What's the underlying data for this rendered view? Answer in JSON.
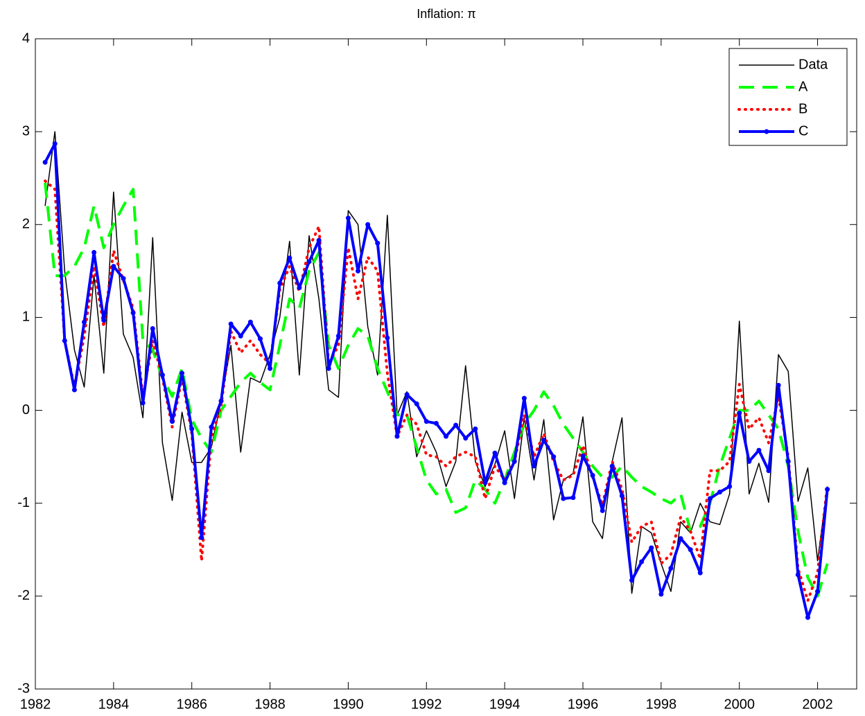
{
  "chart_data": {
    "type": "line",
    "title": "Inflation: π",
    "x": [
      1982.25,
      1982.5,
      1982.75,
      1983,
      1983.25,
      1983.5,
      1983.75,
      1984,
      1984.25,
      1984.5,
      1984.75,
      1985,
      1985.25,
      1985.5,
      1985.75,
      1986,
      1986.25,
      1986.5,
      1986.75,
      1987,
      1987.25,
      1987.5,
      1987.75,
      1988,
      1988.25,
      1988.5,
      1988.75,
      1989,
      1989.25,
      1989.5,
      1989.75,
      1990,
      1990.25,
      1990.5,
      1990.75,
      1991,
      1991.25,
      1991.5,
      1991.75,
      1992,
      1992.25,
      1992.5,
      1992.75,
      1993,
      1993.25,
      1993.5,
      1993.75,
      1994,
      1994.25,
      1994.5,
      1994.75,
      1995,
      1995.25,
      1995.5,
      1995.75,
      1996,
      1996.25,
      1996.5,
      1996.75,
      1997,
      1997.25,
      1997.5,
      1997.75,
      1998,
      1998.25,
      1998.5,
      1998.75,
      1999,
      1999.25,
      1999.5,
      1999.75,
      2000,
      2000.25,
      2000.5,
      2000.75,
      2001,
      2001.25,
      2001.5,
      2001.75,
      2002,
      2002.25
    ],
    "series": [
      {
        "name": "Data",
        "color": "#000000",
        "linestyle": "-",
        "linewidth": 1.5,
        "values": [
          2.2,
          3.0,
          1.5,
          0.65,
          0.25,
          1.45,
          0.4,
          2.35,
          0.82,
          0.57,
          -0.08,
          1.86,
          -0.35,
          -0.97,
          -0.02,
          -0.56,
          -0.56,
          -0.4,
          0.1,
          0.7,
          -0.45,
          0.35,
          0.3,
          0.6,
          1.0,
          1.82,
          0.38,
          1.88,
          1.2,
          0.22,
          0.14,
          2.15,
          2.0,
          0.9,
          0.38,
          2.1,
          -0.05,
          0.2,
          -0.5,
          -0.22,
          -0.45,
          -0.82,
          -0.55,
          0.48,
          -0.55,
          -0.82,
          -0.58,
          -0.22,
          -0.95,
          -0.08,
          -0.75,
          -0.1,
          -1.18,
          -0.75,
          -0.68,
          -0.07,
          -1.2,
          -1.38,
          -0.55,
          -0.08,
          -1.97,
          -1.25,
          -1.32,
          -1.65,
          -1.95,
          -1.2,
          -1.32,
          -1.0,
          -1.2,
          -1.23,
          -0.9,
          0.96,
          -0.9,
          -0.57,
          -0.99,
          0.6,
          0.42,
          -0.98,
          -0.62,
          -1.62,
          -0.82
        ]
      },
      {
        "name": "A",
        "color": "#00ff00",
        "linestyle": "--",
        "linewidth": 4,
        "values": [
          2.45,
          1.45,
          1.45,
          1.55,
          1.75,
          2.2,
          1.75,
          2.0,
          2.2,
          2.38,
          0.75,
          0.65,
          0.35,
          0.15,
          0.45,
          -0.1,
          -0.3,
          -0.45,
          0.0,
          0.15,
          0.3,
          0.4,
          0.3,
          0.22,
          0.7,
          1.2,
          1.1,
          1.5,
          1.7,
          0.7,
          0.45,
          0.7,
          0.88,
          0.8,
          0.45,
          0.2,
          -0.05,
          -0.05,
          -0.4,
          -0.75,
          -0.9,
          -0.85,
          -1.1,
          -1.05,
          -0.75,
          -0.85,
          -1.0,
          -0.75,
          -0.45,
          -0.15,
          0.0,
          0.2,
          0.05,
          -0.15,
          -0.3,
          -0.45,
          -0.6,
          -0.72,
          -0.72,
          -0.6,
          -0.72,
          -0.82,
          -0.88,
          -0.95,
          -1.0,
          -0.9,
          -1.3,
          -1.25,
          -1.0,
          -0.6,
          -0.3,
          0.0,
          0.0,
          0.1,
          -0.05,
          -0.2,
          -0.6,
          -1.3,
          -1.8,
          -2.0,
          -1.65
        ]
      },
      {
        "name": "B",
        "color": "#ff0000",
        "linestyle": ":",
        "linewidth": 4,
        "values": [
          2.47,
          2.38,
          0.75,
          0.25,
          0.8,
          1.55,
          0.9,
          1.72,
          1.4,
          1.1,
          0.15,
          0.75,
          0.35,
          -0.18,
          0.35,
          -0.25,
          -1.62,
          -0.3,
          0.05,
          0.85,
          0.62,
          0.75,
          0.6,
          0.5,
          1.3,
          1.55,
          1.28,
          1.75,
          1.98,
          0.5,
          0.7,
          1.75,
          1.2,
          1.65,
          1.5,
          0.4,
          -0.28,
          -0.05,
          -0.15,
          -0.48,
          -0.5,
          -0.6,
          -0.5,
          -0.45,
          -0.5,
          -0.95,
          -0.6,
          -0.75,
          -0.55,
          -0.05,
          -0.5,
          -0.25,
          -0.55,
          -0.75,
          -0.7,
          -0.38,
          -0.72,
          -1.02,
          -0.55,
          -0.85,
          -1.42,
          -1.25,
          -1.2,
          -1.65,
          -1.55,
          -1.15,
          -1.3,
          -1.6,
          -0.65,
          -0.65,
          -0.55,
          0.28,
          -0.2,
          -0.08,
          -0.35,
          0.15,
          -0.5,
          -1.7,
          -2.05,
          -1.75,
          -0.8
        ]
      },
      {
        "name": "C",
        "color": "#0000ff",
        "linestyle": "-",
        "linewidth": 4,
        "marker": ".",
        "values": [
          2.67,
          2.87,
          0.75,
          0.22,
          0.95,
          1.7,
          0.97,
          1.55,
          1.42,
          1.05,
          0.08,
          0.88,
          0.38,
          -0.12,
          0.4,
          -0.2,
          -1.37,
          -0.18,
          0.1,
          0.93,
          0.8,
          0.95,
          0.77,
          0.45,
          1.37,
          1.64,
          1.32,
          1.6,
          1.83,
          0.45,
          0.8,
          2.07,
          1.5,
          2.0,
          1.8,
          0.78,
          -0.28,
          0.17,
          0.07,
          -0.12,
          -0.14,
          -0.28,
          -0.16,
          -0.3,
          -0.2,
          -0.78,
          -0.46,
          -0.78,
          -0.55,
          0.13,
          -0.6,
          -0.32,
          -0.5,
          -0.95,
          -0.94,
          -0.49,
          -0.7,
          -1.08,
          -0.6,
          -0.92,
          -1.83,
          -1.63,
          -1.48,
          -1.98,
          -1.7,
          -1.38,
          -1.5,
          -1.75,
          -0.95,
          -0.88,
          -0.82,
          -0.03,
          -0.55,
          -0.43,
          -0.65,
          0.27,
          -0.55,
          -1.77,
          -2.23,
          -1.95,
          -0.85
        ]
      }
    ],
    "xlim": [
      1982,
      2003
    ],
    "ylim": [
      -3,
      4
    ],
    "xticks": [
      1982,
      1984,
      1986,
      1988,
      1990,
      1992,
      1994,
      1996,
      1998,
      2000,
      2002
    ],
    "yticks": [
      -3,
      -2,
      -1,
      0,
      1,
      2,
      3,
      4
    ],
    "legend": "northeast",
    "grid": false
  }
}
